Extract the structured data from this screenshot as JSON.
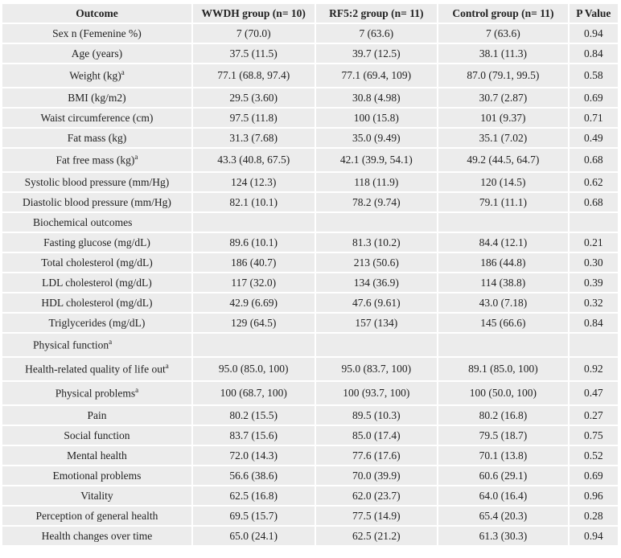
{
  "table": {
    "header": [
      "Outcome",
      "WWDH group (n= 10)",
      "RF5:2 group (n= 11)",
      "Control group (n= 11)",
      "P Value"
    ],
    "rows": [
      {
        "outcome": "Sex n (Femenine %)",
        "values": [
          "7 (70.0)",
          "7 (63.6)",
          "7 (63.6)",
          "0.94"
        ]
      },
      {
        "outcome": "Age (years)",
        "values": [
          "37.5 (11.5)",
          "39.7 (12.5)",
          "38.1 (11.3)",
          "0.84"
        ]
      },
      {
        "outcome": "Weight (kg)",
        "note": "a",
        "values": [
          "77.1 (68.8, 97.4)",
          "77.1 (69.4, 109)",
          "87.0 (79.1, 99.5)",
          "0.58"
        ]
      },
      {
        "outcome": "BMI (kg/m2)",
        "values": [
          "29.5 (3.60)",
          "30.8 (4.98)",
          "30.7 (2.87)",
          "0.69"
        ]
      },
      {
        "outcome": "Waist circumference (cm)",
        "values": [
          "97.5 (11.8)",
          "100 (15.8)",
          "101 (9.37)",
          "0.71"
        ]
      },
      {
        "outcome": "Fat mass (kg)",
        "values": [
          "31.3 (7.68)",
          "35.0 (9.49)",
          "35.1 (7.02)",
          "0.49"
        ]
      },
      {
        "outcome": "Fat free mass (kg)",
        "note": "a",
        "values": [
          "43.3 (40.8, 67.5)",
          "42.1 (39.9, 54.1)",
          "49.2 (44.5, 64.7)",
          "0.68"
        ]
      },
      {
        "outcome": "Systolic blood pressure (mm/Hg)",
        "values": [
          "124 (12.3)",
          "118 (11.9)",
          "120 (14.5)",
          "0.62"
        ]
      },
      {
        "outcome": "Diastolic blood pressure (mm/Hg)",
        "values": [
          "82.1 (10.1)",
          "78.2 (9.74)",
          "79.1 (11.1)",
          "0.68"
        ]
      },
      {
        "outcome": "Biochemical outcomes"
      },
      {
        "outcome": "Fasting glucose (mg/dL)",
        "values": [
          "89.6 (10.1)",
          "81.3 (10.2)",
          "84.4 (12.1)",
          "0.21"
        ]
      },
      {
        "outcome": "Total cholesterol (mg/dL)",
        "values": [
          "186 (40.7)",
          "213 (50.6)",
          "186 (44.8)",
          "0.30"
        ]
      },
      {
        "outcome": "LDL cholesterol (mg/dL)",
        "values": [
          "117 (32.0)",
          "134 (36.9)",
          "114 (38.8)",
          "0.39"
        ]
      },
      {
        "outcome": "HDL cholesterol (mg/dL)",
        "values": [
          "42.9 (6.69)",
          "47.6 (9.61)",
          "43.0 (7.18)",
          "0.32"
        ]
      },
      {
        "outcome": "Triglycerides (mg/dL)",
        "values": [
          "129 (64.5)",
          "157 (134)",
          "145 (66.6)",
          "0.84"
        ]
      },
      {
        "outcome": "Physical function",
        "note": "a"
      },
      {
        "outcome": "Health-related quality of life out",
        "note": "a",
        "values": [
          "95.0 (85.0, 100)",
          "95.0 (83.7, 100)",
          "89.1 (85.0, 100)",
          "0.92"
        ]
      },
      {
        "outcome": "Physical problems",
        "note": "a",
        "values": [
          "100 (68.7, 100)",
          "100 (93.7, 100)",
          "100 (50.0, 100)",
          "0.47"
        ]
      },
      {
        "outcome": "Pain",
        "values": [
          "80.2 (15.5)",
          "89.5 (10.3)",
          "80.2 (16.8)",
          "0.27"
        ]
      },
      {
        "outcome": "Social function",
        "values": [
          "83.7 (15.6)",
          "85.0 (17.4)",
          "79.5 (18.7)",
          "0.75"
        ]
      },
      {
        "outcome": "Mental health",
        "values": [
          "72.0 (14.3)",
          "77.6 (17.6)",
          "70.1 (13.8)",
          "0.52"
        ]
      },
      {
        "outcome": "Emotional problems",
        "values": [
          "56.6 (38.6)",
          "70.0 (39.9)",
          "60.6 (29.1)",
          "0.69"
        ]
      },
      {
        "outcome": "Vitality",
        "values": [
          "62.5 (16.8)",
          "62.0 (23.7)",
          "64.0 (16.4)",
          "0.96"
        ]
      },
      {
        "outcome": "Perception of general health",
        "values": [
          "69.5 (15.7)",
          "77.5 (14.9)",
          "65.4 (20.3)",
          "0.28"
        ]
      },
      {
        "outcome": "Health changes over time",
        "values": [
          "65.0 (24.1)",
          "62.5 (21.2)",
          "61.3 (30.3)",
          "0.94"
        ]
      }
    ]
  }
}
